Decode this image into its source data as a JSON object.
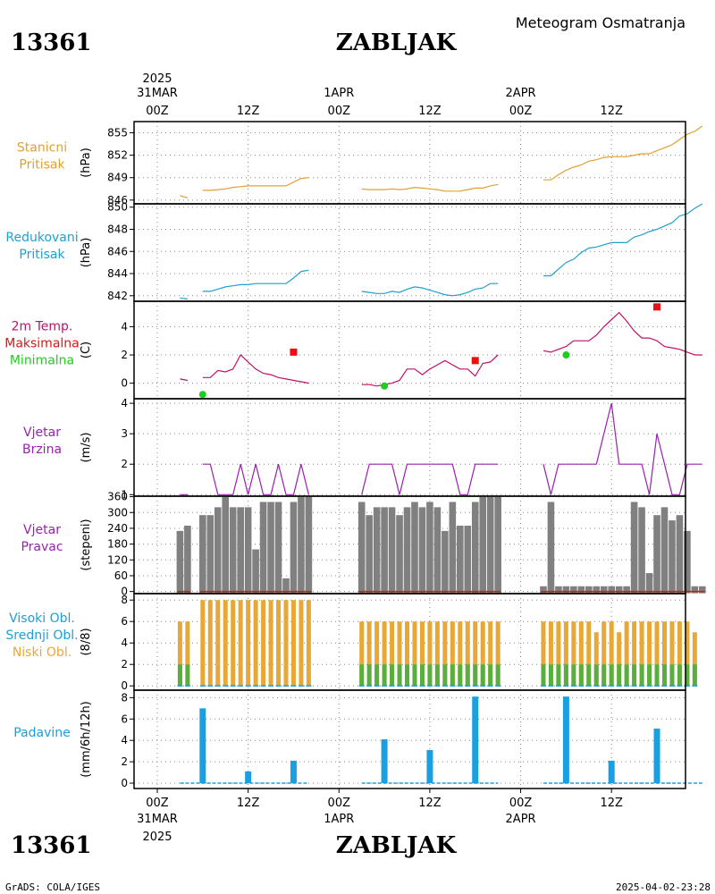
{
  "header": {
    "station_id": "13361",
    "station_name": "ZABLJAK",
    "product_title": "Meteogram Osmatranja"
  },
  "footer": {
    "left": "GrADS: COLA/IGES",
    "right": "2025-04-02-23:28"
  },
  "time_axis": {
    "year_label": "2025",
    "labels": [
      {
        "hour": 0,
        "top": "00Z",
        "date": "31MAR"
      },
      {
        "hour": 12,
        "top": "12Z",
        "date": ""
      },
      {
        "hour": 24,
        "top": "00Z",
        "date": "1APR"
      },
      {
        "hour": 36,
        "top": "12Z",
        "date": ""
      },
      {
        "hour": 48,
        "top": "00Z",
        "date": "2APR"
      },
      {
        "hour": 60,
        "top": "12Z",
        "date": ""
      }
    ]
  },
  "colors": {
    "pressure_station": "#e0a030",
    "pressure_reduced": "#1fa0d0",
    "temp_line": "#c0106a",
    "tmax": "#e81010",
    "tmin": "#20cc20",
    "wind": "#9a20b0",
    "wind_dir_bar": "#808080",
    "wind_dir_base": "#c02020",
    "cloud_low": "#e8a838",
    "cloud_mid": "#40b040",
    "cloud_high": "#1aa0d8",
    "precip": "#1aa0e0"
  },
  "chart_data": [
    {
      "type": "line",
      "panel": "stanicni",
      "labels": [
        "Stanicni",
        "Pritisak"
      ],
      "label_colors": [
        "#e0a030",
        "#e0a030"
      ],
      "ylabel": "(hPa)",
      "ylim": [
        845.5,
        856.5
      ],
      "yticks": [
        846,
        849,
        852,
        855
      ],
      "grid": true,
      "series": [
        {
          "x": [
            3,
            4
          ],
          "values": [
            846.6,
            846.3
          ]
        },
        {
          "x": [
            6,
            7,
            8,
            9,
            10,
            11,
            12,
            13,
            14,
            15,
            16,
            17,
            18,
            19,
            20
          ],
          "values": [
            847.3,
            847.3,
            847.4,
            847.5,
            847.7,
            847.8,
            847.9,
            847.9,
            847.9,
            847.9,
            847.9,
            847.9,
            848.4,
            848.9,
            849.0
          ]
        },
        {
          "x": [
            27,
            28,
            29,
            30,
            31,
            32,
            33,
            34,
            35,
            36,
            37,
            38,
            39,
            40,
            41,
            42,
            43,
            44,
            45
          ],
          "values": [
            847.5,
            847.4,
            847.4,
            847.4,
            847.5,
            847.4,
            847.5,
            847.7,
            847.6,
            847.5,
            847.4,
            847.2,
            847.2,
            847.2,
            847.4,
            847.6,
            847.6,
            847.9,
            848.1
          ]
        },
        {
          "x": [
            51,
            52,
            53,
            54,
            55,
            56,
            57,
            58,
            59,
            60,
            61,
            62,
            63,
            64,
            65,
            66,
            67,
            68,
            69,
            70,
            71,
            72
          ],
          "values": [
            848.7,
            848.7,
            849.4,
            850.0,
            850.4,
            850.7,
            851.2,
            851.4,
            851.7,
            851.8,
            851.8,
            851.8,
            852.0,
            852.2,
            852.2,
            852.6,
            853.0,
            853.4,
            854.1,
            854.8,
            855.2,
            855.9
          ]
        }
      ]
    },
    {
      "type": "line",
      "panel": "redukovani",
      "labels": [
        "Redukovani",
        "Pritisak"
      ],
      "label_colors": [
        "#1fa0d0",
        "#1fa0d0"
      ],
      "ylabel": "(hPa)",
      "ylim": [
        841.5,
        850.3
      ],
      "yticks": [
        842,
        844,
        846,
        848,
        850
      ],
      "grid": true,
      "series": [
        {
          "x": [
            3,
            4
          ],
          "values": [
            841.8,
            841.7
          ]
        },
        {
          "x": [
            6,
            7,
            8,
            9,
            10,
            11,
            12,
            13,
            14,
            15,
            16,
            17,
            18,
            19,
            20
          ],
          "values": [
            842.4,
            842.4,
            842.6,
            842.8,
            842.9,
            843.0,
            843.0,
            843.1,
            843.1,
            843.1,
            843.1,
            843.1,
            843.6,
            844.2,
            844.3
          ]
        },
        {
          "x": [
            27,
            28,
            29,
            30,
            31,
            32,
            33,
            34,
            35,
            36,
            37,
            38,
            39,
            40,
            41,
            42,
            43,
            44,
            45
          ],
          "values": [
            842.4,
            842.3,
            842.2,
            842.2,
            842.4,
            842.3,
            842.6,
            842.8,
            842.7,
            842.5,
            842.3,
            842.1,
            842.0,
            842.1,
            842.3,
            842.6,
            842.7,
            843.1,
            843.1
          ]
        },
        {
          "x": [
            51,
            52,
            53,
            54,
            55,
            56,
            57,
            58,
            59,
            60,
            61,
            62,
            63,
            64,
            65,
            66,
            67,
            68,
            69,
            70,
            71,
            72
          ],
          "values": [
            843.8,
            843.8,
            844.4,
            845.0,
            845.3,
            845.9,
            846.3,
            846.4,
            846.6,
            846.8,
            846.8,
            846.8,
            847.3,
            847.5,
            847.8,
            848.0,
            848.3,
            848.6,
            849.2,
            849.4,
            849.9,
            850.3
          ]
        }
      ]
    },
    {
      "type": "line",
      "panel": "temperatura",
      "labels": [
        "2m Temp.",
        "Maksimalna",
        "Minimalna"
      ],
      "label_colors": [
        "#c0106a",
        "#e81010",
        "#20cc20"
      ],
      "ylabel": "(C)",
      "ylim": [
        -1.1,
        5.8
      ],
      "yticks": [
        0,
        2,
        4
      ],
      "grid": true,
      "series": [
        {
          "name": "2m Temp.",
          "x": [
            3,
            4
          ],
          "values": [
            0.3,
            0.2
          ]
        },
        {
          "name": "2m Temp.",
          "x": [
            6,
            7,
            8,
            9,
            10,
            11,
            12,
            13,
            14,
            15,
            16,
            17,
            18,
            19,
            20
          ],
          "values": [
            0.4,
            0.4,
            0.9,
            0.8,
            1.0,
            2.0,
            1.5,
            1.0,
            0.7,
            0.6,
            0.4,
            0.3,
            0.2,
            0.1,
            0.0
          ]
        },
        {
          "name": "2m Temp.",
          "x": [
            27,
            28,
            29,
            30,
            31,
            32,
            33,
            34,
            35,
            36,
            37,
            38,
            39,
            40,
            41,
            42,
            43,
            44,
            45
          ],
          "values": [
            -0.1,
            -0.1,
            -0.2,
            -0.1,
            0.0,
            0.2,
            1.0,
            1.0,
            0.6,
            1.0,
            1.3,
            1.6,
            1.3,
            1.0,
            1.0,
            0.5,
            1.4,
            1.5,
            2.0
          ]
        },
        {
          "name": "2m Temp.",
          "x": [
            51,
            52,
            53,
            54,
            55,
            56,
            57,
            58,
            59,
            60,
            61,
            62,
            63,
            64,
            65,
            66,
            67,
            68,
            69,
            70,
            71,
            72
          ],
          "values": [
            2.3,
            2.2,
            2.4,
            2.6,
            3.0,
            3.0,
            3.0,
            3.4,
            4.0,
            4.5,
            5.0,
            4.4,
            3.7,
            3.2,
            3.2,
            3.0,
            2.6,
            2.5,
            2.4,
            2.2,
            2.0,
            2.0
          ]
        }
      ],
      "maxima": [
        {
          "x": 18,
          "value": 2.2
        },
        {
          "x": 42,
          "value": 1.6
        },
        {
          "x": 66,
          "value": 5.4
        }
      ],
      "minima": [
        {
          "x": 6,
          "value": -0.8
        },
        {
          "x": 30,
          "value": -0.2
        },
        {
          "x": 54,
          "value": 2.0
        }
      ]
    },
    {
      "type": "line",
      "panel": "vjetar_brzina",
      "labels": [
        "Vjetar",
        "Brzina"
      ],
      "label_colors": [
        "#9a20b0",
        "#9a20b0"
      ],
      "ylabel": "(m/s)",
      "ylim": [
        0.95,
        4.15
      ],
      "yticks": [
        1,
        2,
        3,
        4
      ],
      "grid": true,
      "series": [
        {
          "x": [
            3,
            4
          ],
          "values": [
            1,
            1
          ]
        },
        {
          "x": [
            6,
            7,
            8,
            9,
            10,
            11,
            12,
            13,
            14,
            15,
            16,
            17,
            18,
            19,
            20
          ],
          "values": [
            2,
            2,
            1,
            1,
            1,
            2,
            1,
            2,
            1,
            1,
            2,
            1,
            1,
            2,
            1
          ]
        },
        {
          "x": [
            27,
            28,
            29,
            30,
            31,
            32,
            33,
            34,
            35,
            36,
            37,
            38,
            39,
            40,
            41,
            42,
            43,
            44,
            45
          ],
          "values": [
            1,
            2,
            2,
            2,
            2,
            1,
            2,
            2,
            2,
            2,
            2,
            2,
            2,
            1,
            1,
            2,
            2,
            2,
            2
          ]
        },
        {
          "x": [
            51,
            52,
            53,
            54,
            55,
            56,
            57,
            58,
            59,
            60,
            61,
            62,
            63,
            64,
            65,
            66,
            67,
            68,
            69,
            70,
            71,
            72
          ],
          "values": [
            2,
            1,
            2,
            2,
            2,
            2,
            2,
            2,
            3,
            4,
            2,
            2,
            2,
            2,
            1,
            3,
            2,
            1,
            1,
            2,
            2,
            2
          ]
        }
      ]
    },
    {
      "type": "bar",
      "panel": "vjetar_pravac",
      "labels": [
        "Vjetar",
        "Pravac"
      ],
      "label_colors": [
        "#9a20b0",
        "#9a20b0"
      ],
      "ylabel": "(stepeni)",
      "ylim": [
        -8,
        362
      ],
      "yticks": [
        0,
        60,
        120,
        180,
        240,
        300,
        360
      ],
      "grid": true,
      "x": [
        3,
        4,
        6,
        7,
        8,
        9,
        10,
        11,
        12,
        13,
        14,
        15,
        16,
        17,
        18,
        19,
        20,
        27,
        28,
        29,
        30,
        31,
        32,
        33,
        34,
        35,
        36,
        37,
        38,
        39,
        40,
        41,
        42,
        43,
        44,
        45,
        51,
        52,
        53,
        54,
        55,
        56,
        57,
        58,
        59,
        60,
        61,
        62,
        63,
        64,
        65,
        66,
        67,
        68,
        69,
        70,
        71,
        72
      ],
      "values": [
        230,
        250,
        290,
        290,
        320,
        360,
        320,
        320,
        320,
        160,
        340,
        340,
        340,
        50,
        340,
        360,
        360,
        340,
        290,
        320,
        320,
        320,
        290,
        320,
        340,
        320,
        340,
        320,
        230,
        340,
        250,
        250,
        340,
        360,
        360,
        360,
        20,
        340,
        20,
        20,
        20,
        20,
        20,
        20,
        20,
        20,
        20,
        20,
        340,
        320,
        70,
        290,
        320,
        270,
        290,
        230,
        20,
        20
      ]
    },
    {
      "type": "bar",
      "panel": "oblacnost",
      "labels": [
        "Visoki Obl.",
        "Srednji Obl.",
        "Niski Obl."
      ],
      "label_colors": [
        "#1aa0d8",
        "#1aa0d8",
        "#e8a838"
      ],
      "ylabel": "(8/8)",
      "ylim": [
        -0.4,
        8.6
      ],
      "yticks": [
        0,
        2,
        4,
        6,
        8
      ],
      "grid": true,
      "x": [
        3,
        4,
        6,
        7,
        8,
        9,
        10,
        11,
        12,
        13,
        14,
        15,
        16,
        17,
        18,
        19,
        20,
        27,
        28,
        29,
        30,
        31,
        32,
        33,
        34,
        35,
        36,
        37,
        38,
        39,
        40,
        41,
        42,
        43,
        44,
        45,
        51,
        52,
        53,
        54,
        55,
        56,
        57,
        58,
        59,
        60,
        61,
        62,
        63,
        64,
        65,
        66,
        67,
        68,
        69,
        70,
        71
      ],
      "series": [
        {
          "name": "Niski Obl.",
          "values": [
            6,
            6,
            8,
            8,
            8,
            8,
            8,
            8,
            8,
            8,
            8,
            8,
            8,
            8,
            8,
            8,
            8,
            6,
            6,
            6,
            6,
            6,
            6,
            6,
            6,
            6,
            6,
            6,
            6,
            6,
            6,
            6,
            6,
            6,
            6,
            6,
            6,
            6,
            6,
            6,
            6,
            6,
            6,
            5,
            6,
            6,
            5,
            6,
            6,
            6,
            6,
            6,
            6,
            6,
            6,
            6,
            5
          ]
        },
        {
          "name": "Srednji Obl.",
          "values": [
            2,
            2,
            0,
            0,
            0,
            0,
            0,
            0,
            0,
            0,
            0,
            0,
            0,
            0,
            0,
            0,
            0,
            2,
            2,
            2,
            2,
            2,
            2,
            2,
            2,
            2,
            2,
            2,
            2,
            2,
            2,
            2,
            2,
            2,
            2,
            2,
            2,
            2,
            2,
            2,
            2,
            2,
            2,
            2,
            2,
            2,
            2,
            2,
            2,
            2,
            2,
            2,
            2,
            2,
            2,
            2,
            2
          ]
        },
        {
          "name": "Visoki Obl.",
          "values": [
            0,
            0,
            0,
            0,
            0,
            0,
            0,
            0,
            0,
            0,
            0,
            0,
            0,
            0,
            0,
            0,
            0,
            0,
            0,
            0,
            0,
            0,
            0,
            0,
            0,
            0,
            0,
            0,
            0,
            0,
            0,
            0,
            0,
            0,
            0,
            0,
            0,
            0,
            0,
            0,
            0,
            0,
            0,
            0,
            0,
            0,
            0,
            0,
            0,
            0,
            0,
            0,
            0,
            0,
            0,
            0,
            0
          ]
        }
      ]
    },
    {
      "type": "bar",
      "panel": "padavine",
      "labels": [
        "Padavine"
      ],
      "label_colors": [
        "#1aa0d8"
      ],
      "ylabel": "(mm/6h/12h)",
      "ylim": [
        -0.5,
        8.7
      ],
      "yticks": [
        0,
        2,
        4,
        6,
        8
      ],
      "grid": true,
      "x": [
        6,
        12,
        18,
        30,
        36,
        42,
        54,
        60,
        66
      ],
      "values": [
        7.0,
        1.1,
        2.1,
        4.1,
        3.1,
        8.1,
        8.1,
        2.1,
        5.1
      ],
      "baseline_segments": [
        [
          3,
          20
        ],
        [
          27,
          45
        ],
        [
          51,
          72
        ]
      ]
    }
  ]
}
